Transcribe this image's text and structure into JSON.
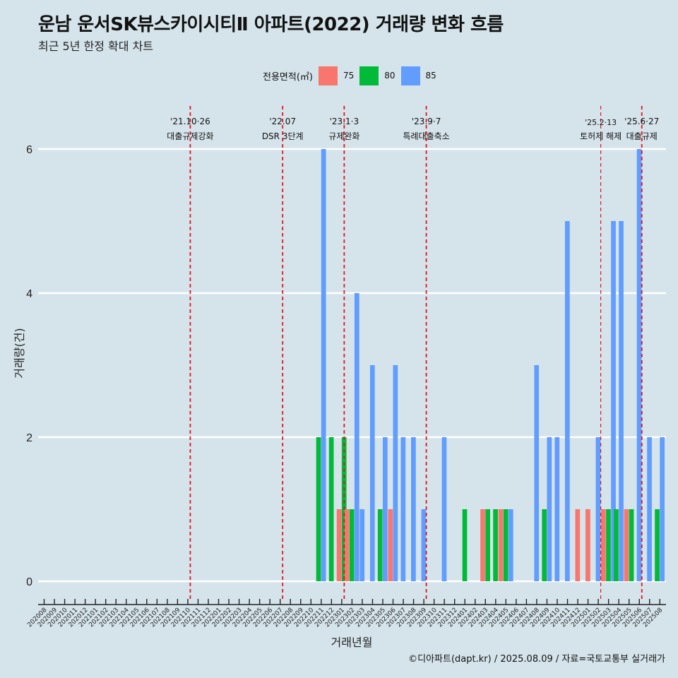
{
  "title": "운남 운서SK뷰스카이시티Ⅱ 아파트(2022) 거래량 변화 흐름",
  "subtitle": "최근 5년 한정 확대 차트",
  "caption": "©디아파트(dapt.kr) / 2025.08.09 / 자료=국토교통부 실거래가",
  "legend": {
    "title": "전용면적(㎡)",
    "items": [
      {
        "label": "75",
        "color": "#f8766d"
      },
      {
        "label": "80",
        "color": "#00ba38"
      },
      {
        "label": "85",
        "color": "#619cff"
      }
    ]
  },
  "chart_data": {
    "type": "bar",
    "stacking": "dodge",
    "xlabel": "거래년월",
    "ylabel": "거래량(건)",
    "ylim": [
      0,
      6
    ],
    "yticks": [
      0,
      2,
      4,
      6
    ],
    "grid": "horizontal major",
    "legend_position": "top",
    "categories": [
      "202008",
      "202009",
      "202010",
      "202011",
      "202012",
      "202101",
      "202102",
      "202103",
      "202104",
      "202105",
      "202106",
      "202107",
      "202108",
      "202109",
      "202110",
      "202111",
      "202112",
      "202201",
      "202202",
      "202203",
      "202204",
      "202205",
      "202206",
      "202207",
      "202208",
      "202209",
      "202210",
      "202211",
      "202212",
      "202301",
      "202302",
      "202303",
      "202304",
      "202305",
      "202306",
      "202307",
      "202308",
      "202309",
      "202310",
      "202311",
      "202312",
      "202401",
      "202402",
      "202403",
      "202404",
      "202405",
      "202406",
      "202407",
      "202408",
      "202409",
      "202410",
      "202411",
      "202412",
      "202501",
      "202502",
      "202503",
      "202504",
      "202505",
      "202506",
      "202507",
      "202508"
    ],
    "series": [
      {
        "name": "75",
        "color": "#f8766d",
        "data": {
          "202301": 1,
          "202302": 1,
          "202306": 1,
          "202403": 1,
          "202405": 1,
          "202412": 1,
          "202501": 1,
          "202503": 1,
          "202505": 1
        }
      },
      {
        "name": "80",
        "color": "#00ba38",
        "data": {
          "202211": 2,
          "202212": 2,
          "202301": 2,
          "202302": 1,
          "202305": 1,
          "202401": 1,
          "202403": 1,
          "202404": 1,
          "202405": 1,
          "202409": 1,
          "202503": 1,
          "202504": 1,
          "202505": 1,
          "202508": 1
        }
      },
      {
        "name": "85",
        "color": "#619cff",
        "data": {
          "202211": 6,
          "202302": 4,
          "202303": 1,
          "202304": 3,
          "202305": 2,
          "202306": 3,
          "202307": 2,
          "202308": 2,
          "202309": 1,
          "202311": 2,
          "202405": 1,
          "202408": 3,
          "202409": 2,
          "202410": 2,
          "202411": 5,
          "202502": 2,
          "202503": 5,
          "202504": 5,
          "202506": 6,
          "202507": 2,
          "202508": 2
        }
      }
    ],
    "annotations": [
      {
        "x": "202110",
        "date": "'21.10·26",
        "text": "대출규제강화"
      },
      {
        "x": "202207",
        "date": "'22.07",
        "text": "DSR 3단계"
      },
      {
        "x": "202301",
        "date": "'23.1·3",
        "text": "규제완화"
      },
      {
        "x": "202309",
        "date": "'23.9·7",
        "text": "특례대출축소"
      },
      {
        "x": "202502",
        "date": "'25.2·13",
        "text": "토허제 해제"
      },
      {
        "x": "202506",
        "date": "'25.6·27",
        "text": "대출규제"
      }
    ]
  }
}
